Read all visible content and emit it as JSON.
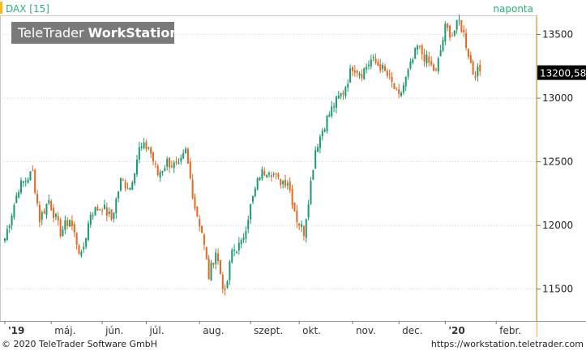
{
  "chart_data": {
    "type": "candlestick",
    "title": "DAX [15]",
    "interval_label": "naponta",
    "last_value_label": "13200,58",
    "last_value": 13200.58,
    "ylim": [
      11250,
      13650
    ],
    "yticks": [
      11500,
      12000,
      12500,
      13000,
      13500
    ],
    "ytick_labels": [
      "11500",
      "12000",
      "12500",
      "13000",
      "13500"
    ],
    "xticks": [
      {
        "label": "'19",
        "pos": 0.0
      },
      {
        "label": "máj.",
        "pos": 20.0
      },
      {
        "label": "jún.",
        "pos": 42.0
      },
      {
        "label": "júl.",
        "pos": 61.0
      },
      {
        "label": "aug.",
        "pos": 84.0
      },
      {
        "label": "szept.",
        "pos": 106.0
      },
      {
        "label": "okt.",
        "pos": 127.0
      },
      {
        "label": "nov.",
        "pos": 150.0
      },
      {
        "label": "dec.",
        "pos": 170.0
      },
      {
        "label": "'20",
        "pos": 190.0
      },
      {
        "label": "febr.",
        "pos": 212.0
      }
    ],
    "xlim": [
      0,
      228
    ],
    "colors": {
      "up": "#1a9a70",
      "down": "#e8661e",
      "axis": "#ffb81c",
      "title": "#2bb07a"
    },
    "anchors": [
      [
        0,
        11900
      ],
      [
        6,
        12300
      ],
      [
        12,
        12420
      ],
      [
        15,
        12050
      ],
      [
        19,
        12200
      ],
      [
        24,
        11950
      ],
      [
        28,
        12050
      ],
      [
        33,
        11750
      ],
      [
        37,
        12100
      ],
      [
        42,
        12150
      ],
      [
        46,
        12050
      ],
      [
        50,
        12350
      ],
      [
        54,
        12300
      ],
      [
        58,
        12600
      ],
      [
        62,
        12620
      ],
      [
        66,
        12400
      ],
      [
        70,
        12500
      ],
      [
        75,
        12450
      ],
      [
        78,
        12580
      ],
      [
        82,
        12150
      ],
      [
        85,
        11950
      ],
      [
        88,
        11600
      ],
      [
        91,
        11800
      ],
      [
        95,
        11450
      ],
      [
        98,
        11800
      ],
      [
        102,
        11850
      ],
      [
        106,
        12150
      ],
      [
        110,
        12400
      ],
      [
        114,
        12450
      ],
      [
        118,
        12350
      ],
      [
        122,
        12350
      ],
      [
        126,
        12050
      ],
      [
        129,
        11950
      ],
      [
        134,
        12600
      ],
      [
        138,
        12800
      ],
      [
        142,
        12950
      ],
      [
        146,
        13050
      ],
      [
        150,
        13250
      ],
      [
        154,
        13200
      ],
      [
        158,
        13300
      ],
      [
        162,
        13250
      ],
      [
        166,
        13150
      ],
      [
        170,
        13000
      ],
      [
        174,
        13200
      ],
      [
        178,
        13400
      ],
      [
        182,
        13300
      ],
      [
        186,
        13200
      ],
      [
        190,
        13550
      ],
      [
        193,
        13500
      ],
      [
        196,
        13600
      ],
      [
        198,
        13500
      ],
      [
        202,
        13200
      ],
      [
        205,
        13210
      ]
    ],
    "series": [
      {
        "name": "DAX",
        "values": []
      }
    ]
  }
}
